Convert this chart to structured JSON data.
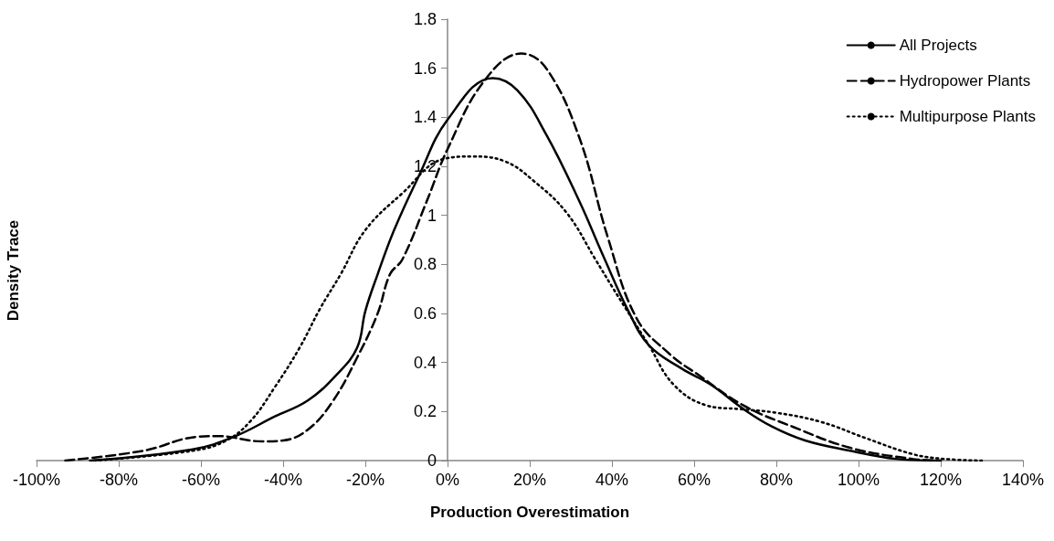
{
  "chart_data": {
    "type": "line",
    "xlabel": "Production Overestimation",
    "ylabel": "Density Trace",
    "xlim": [
      -100,
      140
    ],
    "xticks": [
      {
        "value": -100,
        "label": "-100%"
      },
      {
        "value": -80,
        "label": "-80%"
      },
      {
        "value": -60,
        "label": "-60%"
      },
      {
        "value": -40,
        "label": "-40%"
      },
      {
        "value": -20,
        "label": "-20%"
      },
      {
        "value": 0,
        "label": "0%"
      },
      {
        "value": 20,
        "label": "20%"
      },
      {
        "value": 40,
        "label": "40%"
      },
      {
        "value": 60,
        "label": "60%"
      },
      {
        "value": 80,
        "label": "80%"
      },
      {
        "value": 100,
        "label": "100%"
      },
      {
        "value": 120,
        "label": "120%"
      },
      {
        "value": 140,
        "label": "140%"
      }
    ],
    "ylim": [
      0,
      1.8
    ],
    "yticks": [
      0,
      0.2,
      0.4,
      0.6,
      0.8,
      1,
      1.2,
      1.4,
      1.6,
      1.8
    ],
    "grid": false,
    "legend": "top right",
    "marker": "none",
    "series": [
      {
        "name": "All Projects",
        "color": "#000000",
        "line_style": "solid",
        "x": [
          -87,
          -62,
          -52,
          -42,
          -34,
          -27,
          -22,
          -20,
          -17,
          -13,
          -7,
          0,
          11,
          17,
          24,
          32,
          38,
          44,
          49,
          57,
          64,
          72,
          79,
          87,
          98,
          109,
          120
        ],
        "values": [
          0,
          0.046,
          0.097,
          0.18,
          0.245,
          0.35,
          0.46,
          0.61,
          0.76,
          0.94,
          1.16,
          1.39,
          1.56,
          1.51,
          1.33,
          1.06,
          0.83,
          0.61,
          0.47,
          0.375,
          0.31,
          0.21,
          0.138,
          0.082,
          0.04,
          0.007,
          0
        ]
      },
      {
        "name": "Hydropower Plants",
        "color": "#000000",
        "line_style": "dashed",
        "x": [
          -93,
          -74,
          -61,
          -56,
          -45,
          -40,
          -34,
          -28,
          -22,
          -17,
          -14,
          -11,
          -5,
          0,
          9,
          18,
          24,
          32,
          39,
          46,
          54,
          61,
          72,
          84,
          98,
          113,
          120
        ],
        "values": [
          0,
          0.04,
          0.097,
          0.1,
          0.078,
          0.082,
          0.126,
          0.24,
          0.42,
          0.6,
          0.76,
          0.82,
          1.06,
          1.27,
          1.55,
          1.66,
          1.6,
          1.32,
          0.91,
          0.58,
          0.435,
          0.35,
          0.225,
          0.138,
          0.052,
          0.007,
          0
        ]
      },
      {
        "name": "Multipurpose Plants",
        "color": "#000000",
        "line_style": "dotted",
        "x": [
          -86,
          -62,
          -54,
          -48,
          -42,
          -36,
          -31,
          -26,
          -20,
          -11,
          -1,
          6,
          14,
          21,
          29,
          36,
          40,
          49,
          55,
          63,
          71,
          80,
          91,
          102,
          113,
          120,
          130
        ],
        "values": [
          0,
          0.04,
          0.08,
          0.16,
          0.3,
          0.46,
          0.62,
          0.76,
          0.94,
          1.09,
          1.23,
          1.24,
          1.22,
          1.14,
          1.01,
          0.82,
          0.71,
          0.47,
          0.31,
          0.225,
          0.21,
          0.195,
          0.157,
          0.09,
          0.027,
          0.008,
          0
        ]
      }
    ]
  }
}
